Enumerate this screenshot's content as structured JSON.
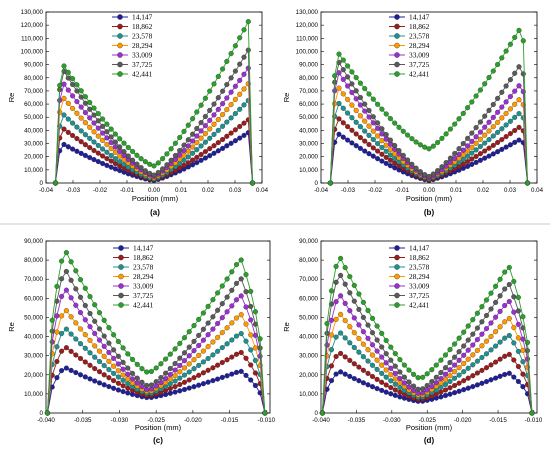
{
  "figure": {
    "colors": [
      "#1f1f99",
      "#9b1c1c",
      "#1f9090",
      "#ff9900",
      "#9b30d0",
      "#5a5a5a",
      "#2aa02a"
    ],
    "legend": [
      "14,147",
      "18,862",
      "23,578",
      "28,294",
      "33,009",
      "37,725",
      "42,441"
    ]
  },
  "chart_data": [
    {
      "type": "line",
      "panel_label": "(a)",
      "xlabel": "Position (mm)",
      "ylabel": "Re",
      "xlim": [
        -0.04,
        0.04
      ],
      "ylim": [
        0,
        130000
      ],
      "xticks": [
        -0.04,
        -0.03,
        -0.02,
        -0.01,
        0.0,
        0.01,
        0.02,
        0.03,
        0.04
      ],
      "xtick_labels": [
        "-0.04",
        "-0.03",
        "-0.02",
        "-0.01",
        "0.00",
        "0.01",
        "0.02",
        "0.03",
        "0.04"
      ],
      "yticks": [
        0,
        10000,
        20000,
        30000,
        40000,
        50000,
        60000,
        70000,
        80000,
        90000,
        100000,
        110000,
        120000,
        130000
      ],
      "ytick_labels": [
        "0",
        "10,000",
        "20,000",
        "30,000",
        "40,000",
        "50,000",
        "60,000",
        "70,000",
        "80,000",
        "90,000",
        "100,000",
        "110,000",
        "120,000",
        "130,000"
      ],
      "legend_position": "top-center",
      "profile": {
        "x_start": -0.0365,
        "x_end": 0.0365,
        "x_center": 0.0,
        "x_peak_left": -0.034,
        "x_peak_right": 0.0355
      },
      "series": [
        {
          "name": "14,147",
          "left_peak": 30000,
          "min": 2000,
          "right_peak": 39000
        },
        {
          "name": "18,862",
          "left_peak": 42000,
          "min": 2500,
          "right_peak": 49000
        },
        {
          "name": "23,578",
          "left_peak": 53000,
          "min": 3000,
          "right_peak": 64000
        },
        {
          "name": "28,294",
          "left_peak": 66000,
          "min": 4000,
          "right_peak": 77000
        },
        {
          "name": "33,009",
          "left_peak": 77000,
          "min": 5000,
          "right_peak": 89000
        },
        {
          "name": "37,725",
          "left_peak": 87000,
          "min": 6000,
          "right_peak": 103000
        },
        {
          "name": "42,441",
          "left_peak": 91000,
          "min": 13000,
          "right_peak": 125000
        }
      ]
    },
    {
      "type": "line",
      "panel_label": "(b)",
      "xlabel": "Position (mm)",
      "ylabel": "Re",
      "xlim": [
        -0.04,
        0.04
      ],
      "ylim": [
        0,
        130000
      ],
      "xticks": [
        -0.04,
        -0.03,
        -0.02,
        -0.01,
        0.0,
        0.01,
        0.02,
        0.03,
        0.04
      ],
      "xtick_labels": [
        "-0.04",
        "-0.03",
        "-0.02",
        "-0.01",
        "0.00",
        "0.01",
        "0.02",
        "0.03",
        "0.04"
      ],
      "yticks": [
        0,
        10000,
        20000,
        30000,
        40000,
        50000,
        60000,
        70000,
        80000,
        90000,
        100000,
        110000,
        120000,
        130000
      ],
      "ytick_labels": [
        "0",
        "10,000",
        "20,000",
        "30,000",
        "40,000",
        "50,000",
        "60,000",
        "70,000",
        "80,000",
        "90,000",
        "100,000",
        "110,000",
        "120,000",
        "130,000"
      ],
      "legend_position": "top-center",
      "profile": {
        "x_start": -0.0365,
        "x_end": 0.0365,
        "x_center": 0.0,
        "x_peak_left": -0.034,
        "x_peak_right": 0.0345
      },
      "series": [
        {
          "name": "14,147",
          "left_peak": 38000,
          "min": 2000,
          "right_peak": 34000
        },
        {
          "name": "18,862",
          "left_peak": 50000,
          "min": 2500,
          "right_peak": 44000
        },
        {
          "name": "23,578",
          "left_peak": 62000,
          "min": 3000,
          "right_peak": 55000
        },
        {
          "name": "28,294",
          "left_peak": 74000,
          "min": 3500,
          "right_peak": 66000
        },
        {
          "name": "33,009",
          "left_peak": 86000,
          "min": 4000,
          "right_peak": 77000
        },
        {
          "name": "37,725",
          "left_peak": 94000,
          "min": 5000,
          "right_peak": 92000
        },
        {
          "name": "42,441",
          "left_peak": 100000,
          "min": 26000,
          "right_peak": 120000
        }
      ]
    },
    {
      "type": "line",
      "panel_label": "(c)",
      "xlabel": "Position (mm)",
      "ylabel": "Re",
      "xlim": [
        -0.04,
        -0.0095
      ],
      "ylim": [
        0,
        90000
      ],
      "xticks": [
        -0.04,
        -0.035,
        -0.03,
        -0.025,
        -0.02,
        -0.015,
        -0.01
      ],
      "xtick_labels": [
        "-0.040",
        "-0.035",
        "-0.030",
        "-0.025",
        "-0.020",
        "-0.015",
        "-0.010"
      ],
      "yticks": [
        0,
        10000,
        20000,
        30000,
        40000,
        50000,
        60000,
        70000,
        80000,
        90000
      ],
      "ytick_labels": [
        "0",
        "10,000",
        "20,000",
        "30,000",
        "40,000",
        "50,000",
        "60,000",
        "70,000",
        "80,000",
        "90,000"
      ],
      "legend_position": "top-center",
      "profile": {
        "x_start": -0.0398,
        "x_end": -0.0102,
        "x_center": -0.026,
        "x_peak_left": -0.0375,
        "x_peak_right": -0.0135
      },
      "series": [
        {
          "name": "14,147",
          "left_peak": 24000,
          "min": 8000,
          "right_peak": 22000
        },
        {
          "name": "18,862",
          "left_peak": 35000,
          "min": 9000,
          "right_peak": 32000
        },
        {
          "name": "23,578",
          "left_peak": 45000,
          "min": 10000,
          "right_peak": 42000
        },
        {
          "name": "28,294",
          "left_peak": 55000,
          "min": 11000,
          "right_peak": 52000
        },
        {
          "name": "33,009",
          "left_peak": 66000,
          "min": 12000,
          "right_peak": 62000
        },
        {
          "name": "37,725",
          "left_peak": 76000,
          "min": 14000,
          "right_peak": 71000
        },
        {
          "name": "42,441",
          "left_peak": 86000,
          "min": 21000,
          "right_peak": 81000
        }
      ]
    },
    {
      "type": "line",
      "panel_label": "(d)",
      "xlabel": "Position (mm)",
      "ylabel": "Re",
      "xlim": [
        -0.04,
        -0.0095
      ],
      "ylim": [
        0,
        90000
      ],
      "xticks": [
        -0.04,
        -0.035,
        -0.03,
        -0.025,
        -0.02,
        -0.015,
        -0.01
      ],
      "xtick_labels": [
        "-0.040",
        "-0.035",
        "-0.030",
        "-0.025",
        "-0.020",
        "-0.015",
        "-0.010"
      ],
      "yticks": [
        0,
        10000,
        20000,
        30000,
        40000,
        50000,
        60000,
        70000,
        80000,
        90000
      ],
      "ytick_labels": [
        "0",
        "10,000",
        "20,000",
        "30,000",
        "40,000",
        "50,000",
        "60,000",
        "70,000",
        "80,000",
        "90,000"
      ],
      "legend_position": "top-center",
      "profile": {
        "x_start": -0.0398,
        "x_end": -0.0102,
        "x_center": -0.026,
        "x_peak_left": -0.0375,
        "x_peak_right": -0.0135
      },
      "series": [
        {
          "name": "14,147",
          "left_peak": 22000,
          "min": 6000,
          "right_peak": 21000
        },
        {
          "name": "18,862",
          "left_peak": 32000,
          "min": 7000,
          "right_peak": 31000
        },
        {
          "name": "23,578",
          "left_peak": 43000,
          "min": 8000,
          "right_peak": 41000
        },
        {
          "name": "28,294",
          "left_peak": 53000,
          "min": 9000,
          "right_peak": 50000
        },
        {
          "name": "33,009",
          "left_peak": 63000,
          "min": 10000,
          "right_peak": 59000
        },
        {
          "name": "37,725",
          "left_peak": 74000,
          "min": 12000,
          "right_peak": 68000
        },
        {
          "name": "42,441",
          "left_peak": 83000,
          "min": 18000,
          "right_peak": 77000
        }
      ]
    }
  ]
}
